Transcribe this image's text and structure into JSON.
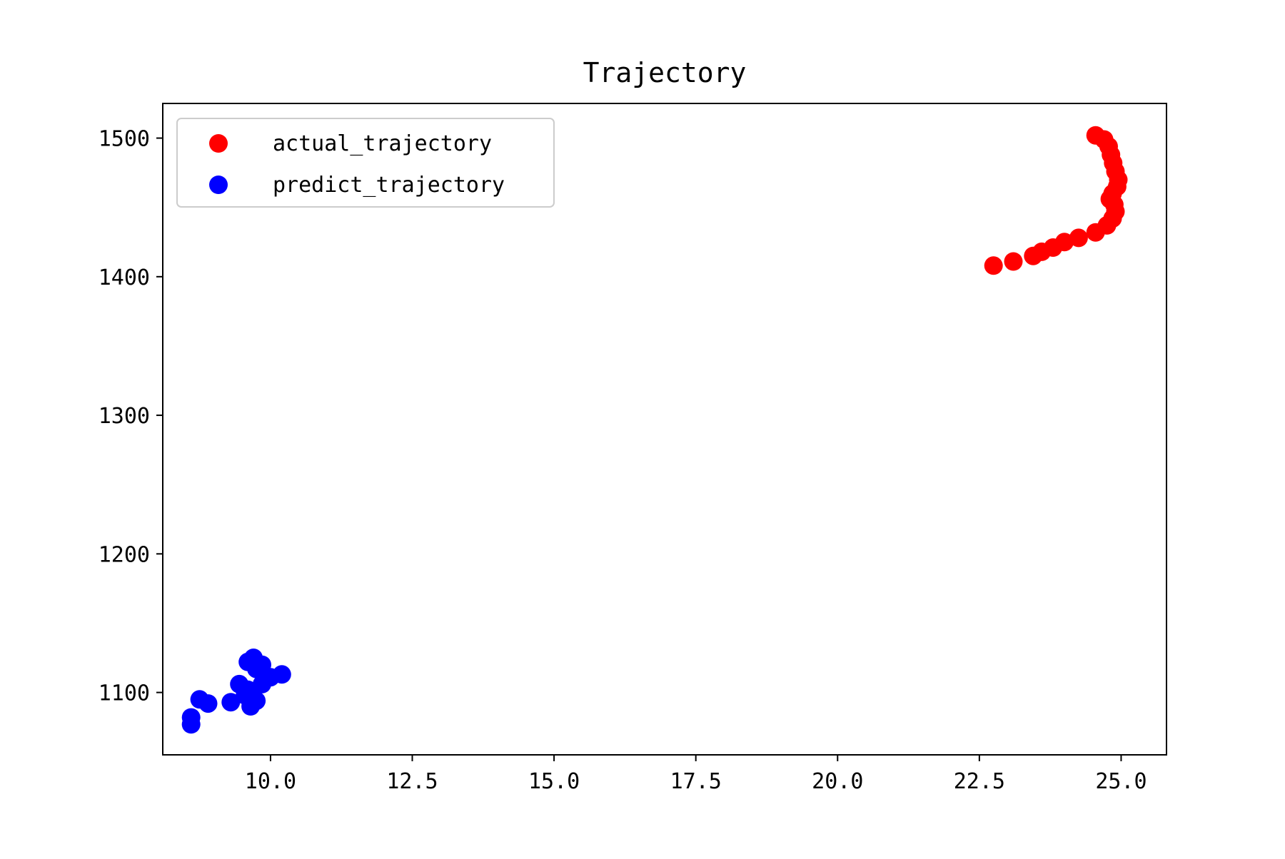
{
  "chart_data": {
    "type": "scatter",
    "title": "Trajectory",
    "xlabel": "",
    "ylabel": "",
    "xlim": [
      8.1,
      25.8
    ],
    "ylim": [
      1055,
      1525
    ],
    "x_ticks": [
      10.0,
      12.5,
      15.0,
      17.5,
      20.0,
      22.5,
      25.0
    ],
    "x_tick_labels": [
      "10.0",
      "12.5",
      "15.0",
      "17.5",
      "20.0",
      "22.5",
      "25.0"
    ],
    "y_ticks": [
      1100,
      1200,
      1300,
      1400,
      1500
    ],
    "y_tick_labels": [
      "1100",
      "1200",
      "1300",
      "1400",
      "1500"
    ],
    "grid": false,
    "legend_position": "top-left",
    "series": [
      {
        "name": "actual_trajectory",
        "color": "#ff0000",
        "points": [
          [
            24.55,
            1502
          ],
          [
            24.7,
            1499
          ],
          [
            24.78,
            1494
          ],
          [
            24.82,
            1488
          ],
          [
            24.86,
            1482
          ],
          [
            24.9,
            1476
          ],
          [
            24.95,
            1470
          ],
          [
            24.93,
            1465
          ],
          [
            24.85,
            1460
          ],
          [
            24.8,
            1456
          ],
          [
            24.88,
            1452
          ],
          [
            24.9,
            1447
          ],
          [
            24.85,
            1442
          ],
          [
            24.75,
            1437
          ],
          [
            24.55,
            1432
          ],
          [
            24.25,
            1428
          ],
          [
            24.0,
            1425
          ],
          [
            23.8,
            1421
          ],
          [
            23.6,
            1418
          ],
          [
            23.45,
            1415
          ],
          [
            23.1,
            1411
          ],
          [
            22.75,
            1408
          ]
        ]
      },
      {
        "name": "predict_trajectory",
        "color": "#0000ff",
        "points": [
          [
            9.7,
            1125
          ],
          [
            9.6,
            1122
          ],
          [
            9.85,
            1120
          ],
          [
            9.75,
            1117
          ],
          [
            10.2,
            1113
          ],
          [
            10.0,
            1111
          ],
          [
            9.85,
            1106
          ],
          [
            9.45,
            1106
          ],
          [
            9.6,
            1102
          ],
          [
            9.55,
            1098
          ],
          [
            8.75,
            1095
          ],
          [
            9.75,
            1094
          ],
          [
            9.3,
            1093
          ],
          [
            8.9,
            1092
          ],
          [
            9.65,
            1090
          ],
          [
            8.6,
            1082
          ],
          [
            8.6,
            1077
          ]
        ]
      }
    ]
  }
}
